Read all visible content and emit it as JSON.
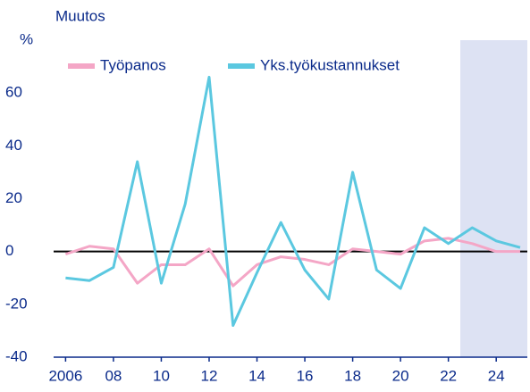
{
  "chart_data": {
    "type": "line",
    "title": "Muutos",
    "y_unit": "%",
    "x": [
      2006,
      2007,
      2008,
      2009,
      2010,
      2011,
      2012,
      2013,
      2014,
      2015,
      2016,
      2017,
      2018,
      2019,
      2020,
      2021,
      2022,
      2023,
      2024,
      2025
    ],
    "series": [
      {
        "name": "Työpanos",
        "color": "#f4a6c6",
        "values": [
          -1,
          2,
          1,
          -12,
          -5,
          -5,
          1,
          -13,
          -5,
          -2,
          -3,
          -5,
          1,
          0,
          -1,
          4,
          5,
          3,
          0,
          0
        ]
      },
      {
        "name": "Yks.työkustannukset",
        "color": "#5bc8e0",
        "values": [
          -10,
          -11,
          -6,
          34,
          -12,
          18,
          66,
          -28,
          -8,
          11,
          -7,
          -18,
          30,
          -7,
          -14,
          9,
          3,
          9,
          4,
          1.5
        ]
      }
    ],
    "xlim": [
      2005.5,
      2025.3
    ],
    "xticks": [
      2006,
      {
        "value": 2008,
        "label": "08"
      },
      {
        "value": 2010,
        "label": "10"
      },
      {
        "value": 2012,
        "label": "12"
      },
      {
        "value": 2014,
        "label": "14"
      },
      {
        "value": 2016,
        "label": "16"
      },
      {
        "value": 2018,
        "label": "18"
      },
      {
        "value": 2020,
        "label": "20"
      },
      {
        "value": 2022,
        "label": "22"
      },
      {
        "value": 2024,
        "label": "24"
      }
    ],
    "ylim": [
      -40,
      80
    ],
    "yticks": [
      -40,
      -20,
      0,
      20,
      40,
      60
    ],
    "forecast_from": 2022.5,
    "forecast_color": "#dde2f3"
  }
}
